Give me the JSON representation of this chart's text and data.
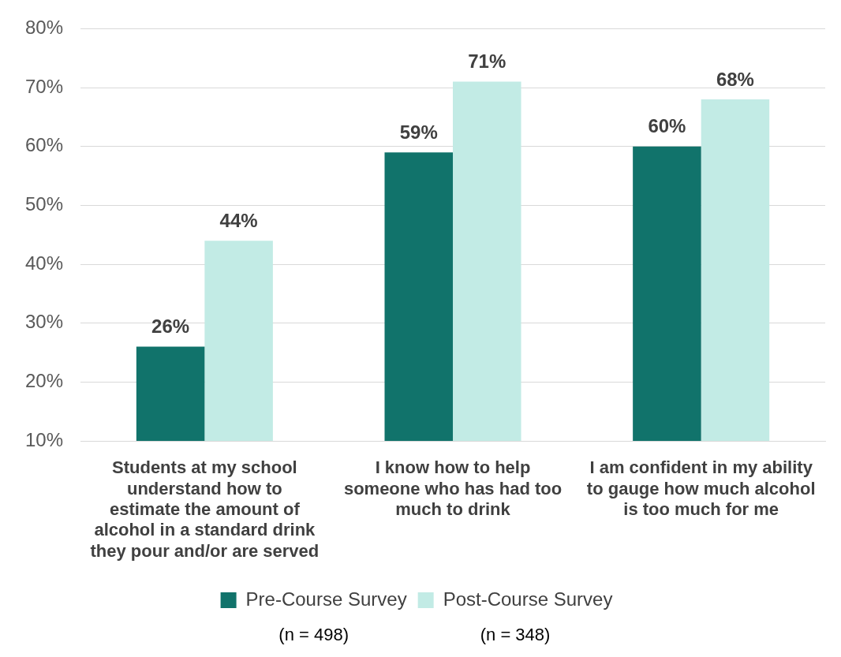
{
  "chart_data": {
    "type": "bar",
    "categories": [
      "Students at my school understand how to estimate the amount of alcohol in a standard drink they pour and/or are served",
      "I know how to help someone who has had too much to drink",
      "I am confident in my ability to gauge how much alcohol is too much for me"
    ],
    "series": [
      {
        "name": "Pre-Course Survey",
        "color": "#11736b",
        "values": [
          26,
          59,
          60
        ],
        "value_labels": [
          "26%",
          "59%",
          "60%"
        ]
      },
      {
        "name": "Post-Course Survey",
        "color": "#c2ebe5",
        "values": [
          44,
          71,
          68
        ],
        "value_labels": [
          "44%",
          "71%",
          "68%"
        ]
      }
    ],
    "ylim": [
      10,
      80
    ],
    "yticks": [
      {
        "value": 10,
        "label": "10%"
      },
      {
        "value": 20,
        "label": "20%"
      },
      {
        "value": 30,
        "label": "30%"
      },
      {
        "value": 40,
        "label": "40%"
      },
      {
        "value": 50,
        "label": "50%"
      },
      {
        "value": 60,
        "label": "60%"
      },
      {
        "value": 70,
        "label": "70%"
      },
      {
        "value": 80,
        "label": "80%"
      }
    ],
    "grid": "y",
    "legend": "bottom",
    "annotations": [
      "(n = 498)",
      "(n = 348)"
    ]
  }
}
